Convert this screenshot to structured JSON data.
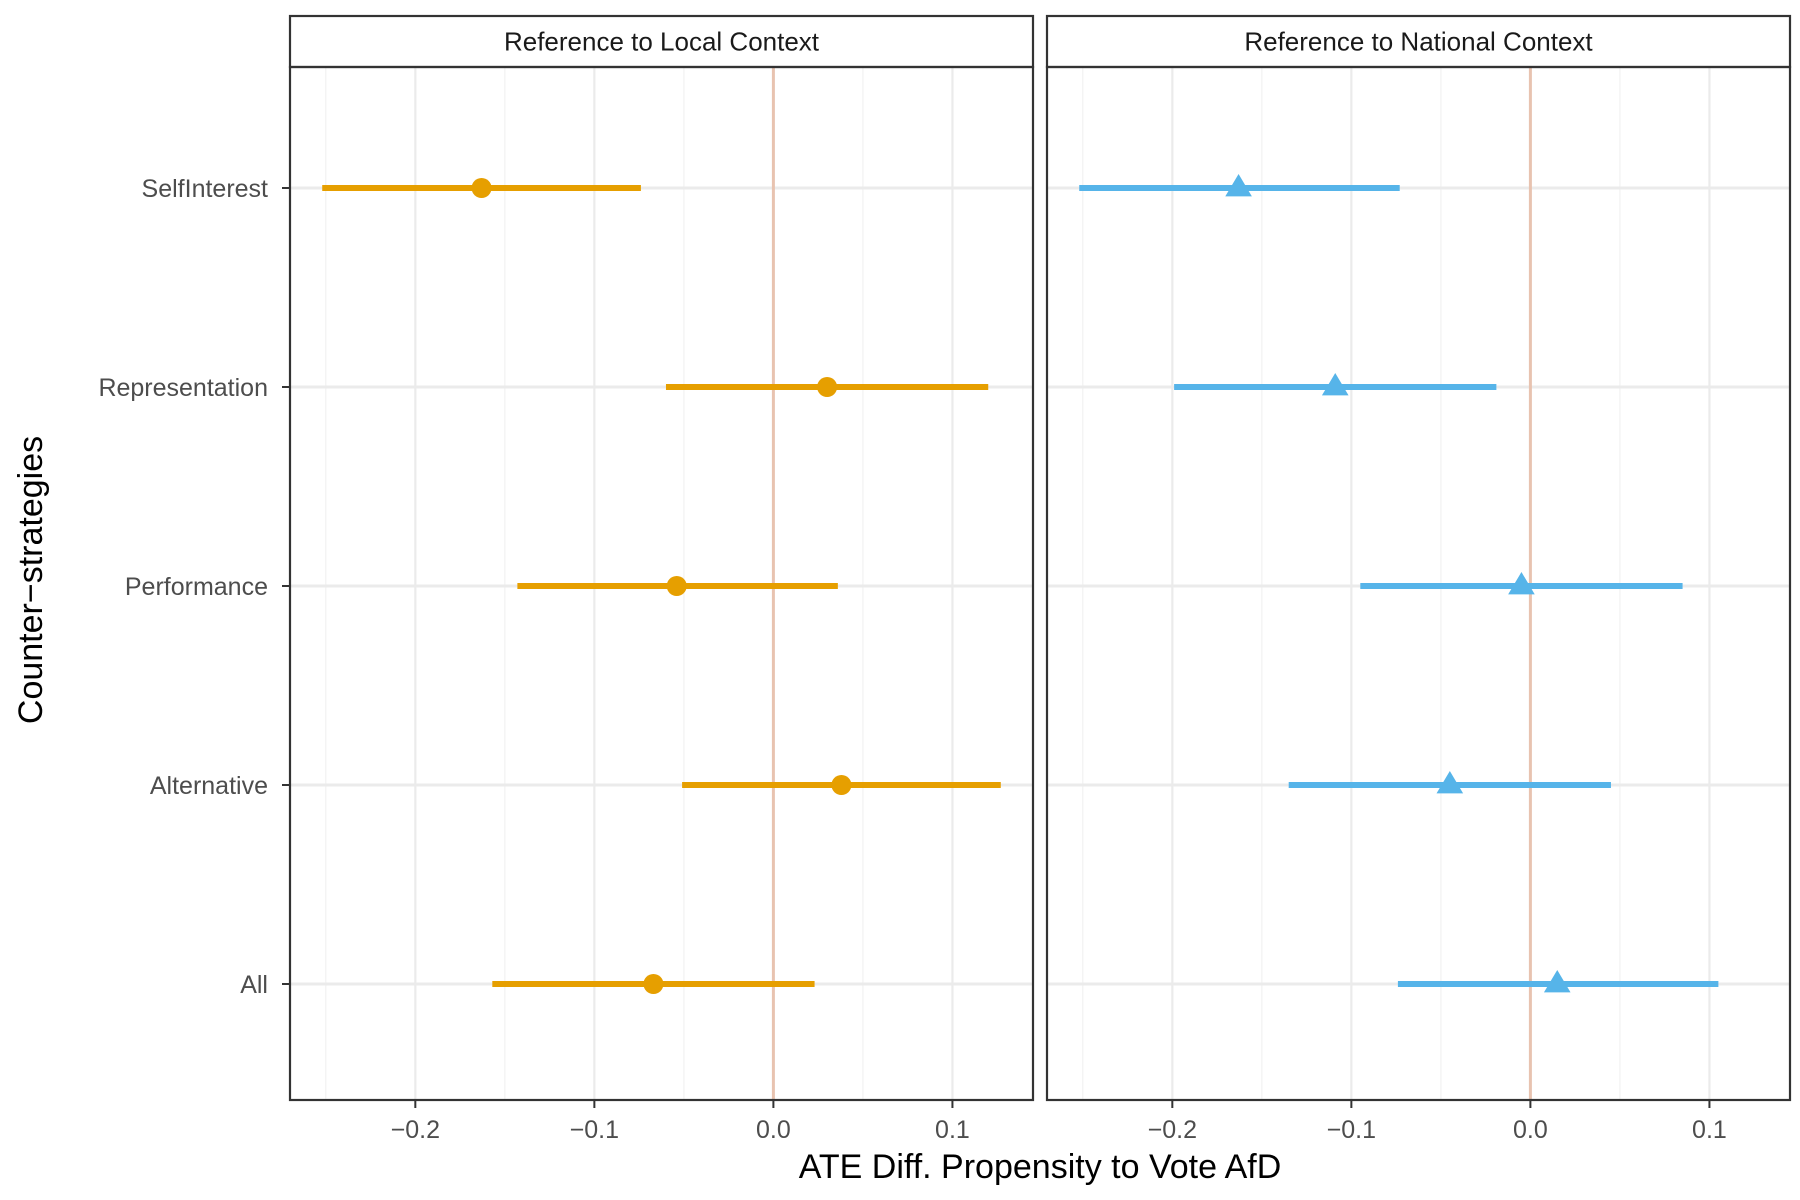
{
  "chart_data": {
    "type": "scatter",
    "xlabel": "ATE Diff. Propensity to Vote AfD",
    "ylabel": "Counter−strategies",
    "categories": [
      "SelfInterest",
      "Representation",
      "Performance",
      "Alternative",
      "All"
    ],
    "xlim": [
      -0.27,
      0.145
    ],
    "x_ticks": [
      -0.2,
      -0.1,
      0.0,
      0.1
    ],
    "x_tick_labels": [
      "−0.2",
      "−0.1",
      "0.0",
      "0.1"
    ],
    "reference_line_x": 0.0,
    "grid": true,
    "legend": "none",
    "panels": [
      {
        "title": "Reference to Local Context",
        "color": "#E69F00",
        "marker": "circle",
        "points": [
          {
            "category": "SelfInterest",
            "estimate": -0.163,
            "lower": -0.252,
            "upper": -0.074
          },
          {
            "category": "Representation",
            "estimate": 0.03,
            "lower": -0.06,
            "upper": 0.12
          },
          {
            "category": "Performance",
            "estimate": -0.054,
            "lower": -0.143,
            "upper": 0.036
          },
          {
            "category": "Alternative",
            "estimate": 0.038,
            "lower": -0.051,
            "upper": 0.127
          },
          {
            "category": "All",
            "estimate": -0.067,
            "lower": -0.157,
            "upper": 0.023
          }
        ]
      },
      {
        "title": "Reference to National Context",
        "color": "#56B4E9",
        "marker": "triangle",
        "points": [
          {
            "category": "SelfInterest",
            "estimate": -0.163,
            "lower": -0.252,
            "upper": -0.073
          },
          {
            "category": "Representation",
            "estimate": -0.109,
            "lower": -0.199,
            "upper": -0.019
          },
          {
            "category": "Performance",
            "estimate": -0.005,
            "lower": -0.095,
            "upper": 0.085
          },
          {
            "category": "Alternative",
            "estimate": -0.045,
            "lower": -0.135,
            "upper": 0.045
          },
          {
            "category": "All",
            "estimate": 0.015,
            "lower": -0.074,
            "upper": 0.105
          }
        ]
      }
    ]
  }
}
